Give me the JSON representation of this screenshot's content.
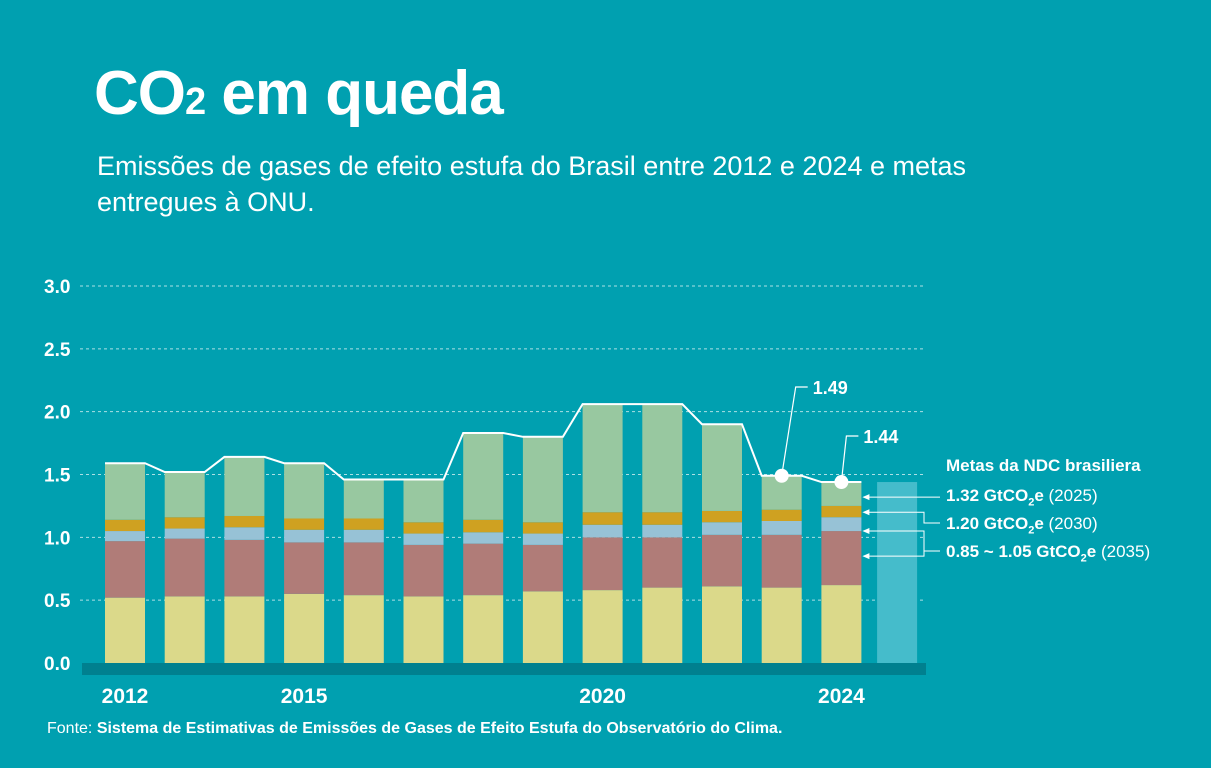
{
  "title": {
    "main": "CO",
    "sub": "2",
    "rest": " em queda"
  },
  "subtitle": "Emissões de gases de efeito estufa do Brasil entre 2012 e 2024 e metas entregues à ONU.",
  "source": {
    "label": "Fonte: ",
    "text": "Sistema de Estimativas de Emissões de Gases de Efeito Estufa do Observatório do Clima."
  },
  "ndc": {
    "title": "Metas da NDC brasiliera",
    "targets": [
      {
        "value": "1.32 GtCO",
        "sub": "2",
        "unit": "e",
        "year": " (2025)"
      },
      {
        "value": "1.20 GtCO",
        "sub": "2",
        "unit": "e",
        "year": " (2030)"
      },
      {
        "value": "0.85 ~ 1.05 GtCO",
        "sub": "2",
        "unit": "e",
        "year": " (2035)"
      }
    ]
  },
  "chart_data": {
    "type": "bar",
    "stacked": true,
    "categories": [
      2012,
      2013,
      2014,
      2015,
      2016,
      2017,
      2018,
      2019,
      2020,
      2021,
      2022,
      2023,
      2024
    ],
    "x_tick_labels": [
      "2012",
      "2015",
      "2020",
      "2024"
    ],
    "x_tick_years": [
      2012,
      2015,
      2020,
      2024
    ],
    "ylim": [
      0,
      3.0
    ],
    "y_ticks": [
      "0.0",
      "0.5",
      "1.0",
      "1.5",
      "2.0",
      "2.5",
      "3.0"
    ],
    "grid": true,
    "series": [
      {
        "color": "#dbd98a",
        "values": [
          0.52,
          0.53,
          0.53,
          0.55,
          0.54,
          0.53,
          0.54,
          0.57,
          0.58,
          0.6,
          0.61,
          0.6,
          0.62
        ]
      },
      {
        "color": "#b07c78",
        "values": [
          0.45,
          0.46,
          0.45,
          0.41,
          0.42,
          0.41,
          0.41,
          0.37,
          0.42,
          0.4,
          0.41,
          0.42,
          0.43
        ]
      },
      {
        "color": "#97c2d6",
        "values": [
          0.08,
          0.08,
          0.1,
          0.1,
          0.1,
          0.09,
          0.09,
          0.09,
          0.1,
          0.1,
          0.1,
          0.11,
          0.11
        ]
      },
      {
        "color": "#cfa121",
        "values": [
          0.09,
          0.09,
          0.09,
          0.09,
          0.09,
          0.09,
          0.1,
          0.09,
          0.1,
          0.1,
          0.09,
          0.09,
          0.09
        ]
      },
      {
        "color": "#98c8a0",
        "values": [
          0.45,
          0.36,
          0.47,
          0.44,
          0.31,
          0.34,
          0.69,
          0.68,
          0.86,
          0.86,
          0.69,
          0.27,
          0.19
        ]
      }
    ],
    "target_bar": {
      "value": 1.44,
      "color": "#45bccb"
    },
    "annotations": [
      {
        "year": 2023,
        "label": "1.49",
        "value": 1.49
      },
      {
        "year": 2024,
        "label": "1.44",
        "value": 1.44
      }
    ]
  }
}
